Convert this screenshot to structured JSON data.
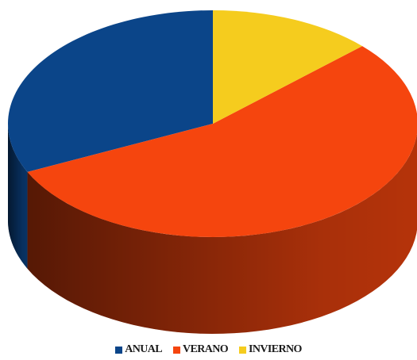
{
  "chart_data": {
    "type": "pie",
    "style": "3d",
    "title": "",
    "categories": [
      "ANUAL",
      "VERANO",
      "INVIERNO"
    ],
    "values": [
      32,
      55,
      13
    ],
    "unit": "percent",
    "colors": [
      "#0b4589",
      "#f5450e",
      "#f5cc1e"
    ],
    "start_angle_deg": 0,
    "direction": "counterclockwise",
    "legend_position": "bottom"
  }
}
